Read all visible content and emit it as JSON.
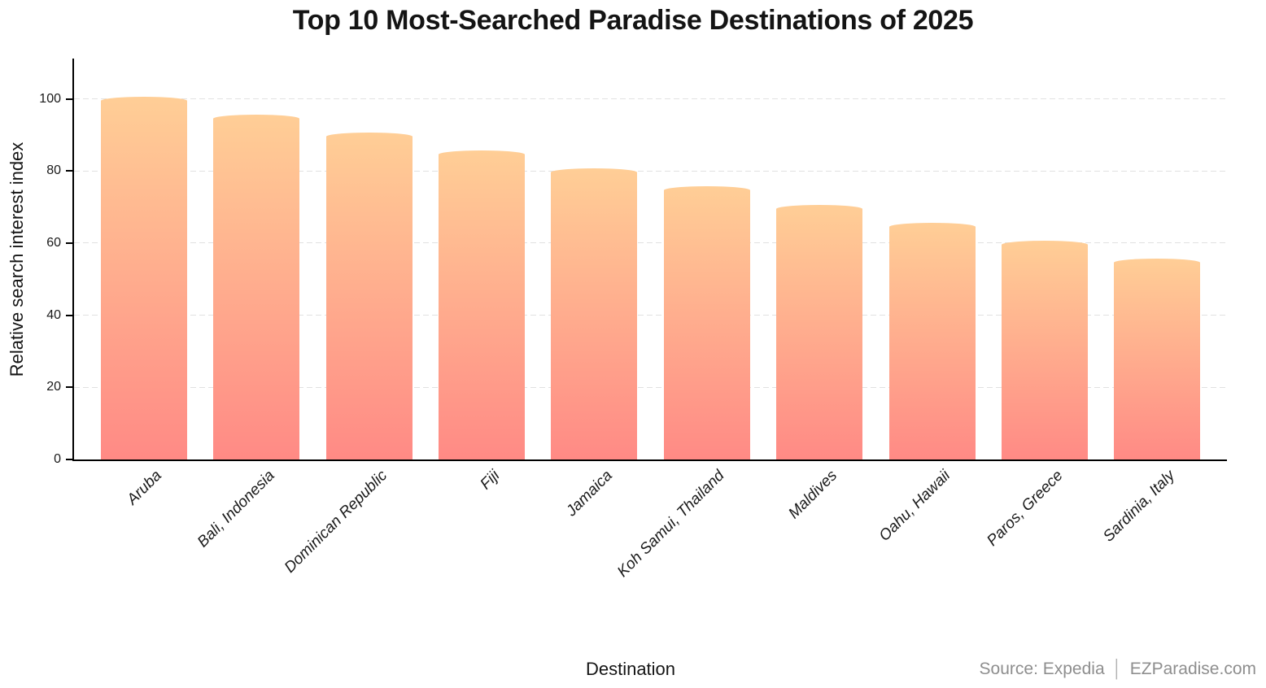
{
  "chart_data": {
    "type": "bar",
    "title": "Top 10 Most-Searched Paradise Destinations of 2025",
    "xlabel": "Destination",
    "ylabel": "Relative search interest index",
    "categories": [
      "Aruba",
      "Bali, Indonesia",
      "Dominican Republic",
      "Fiji",
      "Jamaica",
      "Koh Samui, Thailand",
      "Maldives",
      "Oahu, Hawaii",
      "Paros, Greece",
      "Sardinia, Italy"
    ],
    "values": [
      100,
      95,
      90,
      85,
      80,
      75,
      70,
      65,
      60,
      55
    ],
    "yticks": [
      0,
      20,
      40,
      60,
      80,
      100
    ],
    "ylim": [
      0,
      111
    ],
    "grid": "horizontal-dashed",
    "legend_position": "none",
    "colors": {
      "bar_gradient_top": "#FFCE96",
      "bar_gradient_bottom": "#FF8A85",
      "gridline": "#e1e1e1",
      "axis": "#000000",
      "text": "#141414",
      "source_text": "#8e8e8e"
    }
  },
  "footer": {
    "source": "Source: Expedia",
    "separator": "│",
    "brand": "EZParadise.com"
  }
}
